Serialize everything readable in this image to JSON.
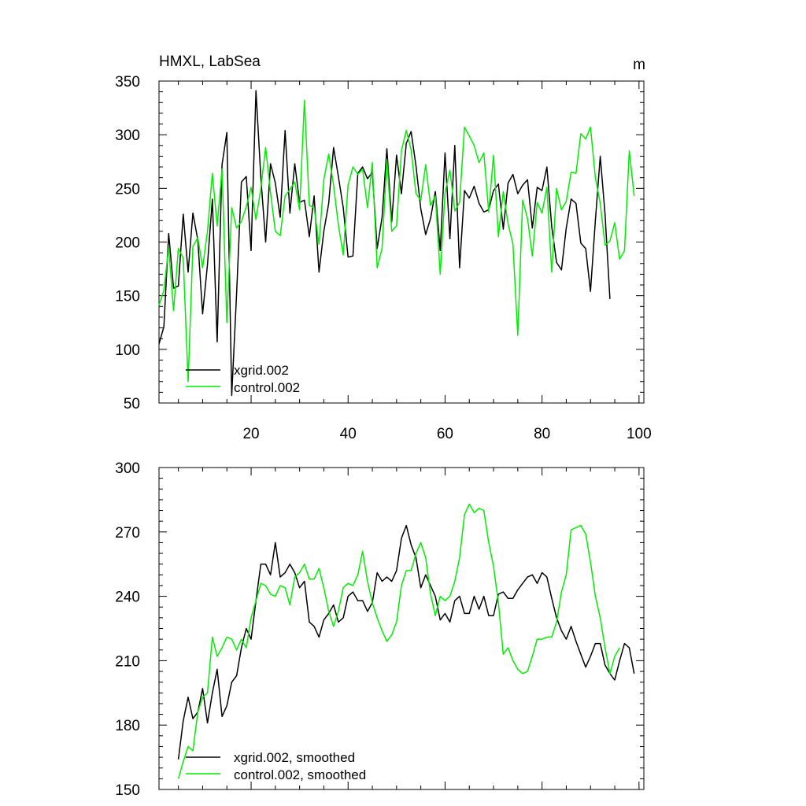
{
  "chart_data": [
    {
      "type": "line",
      "title_left": "HMXL, LabSea",
      "title_right": "m",
      "xlim": [
        1,
        101
      ],
      "ylim": [
        50,
        350
      ],
      "x_ticks": [
        20,
        40,
        60,
        80,
        100
      ],
      "x_tick_labels": [
        "20",
        "40",
        "60",
        "80",
        "100"
      ],
      "y_ticks": [
        50,
        100,
        150,
        200,
        250,
        300,
        350
      ],
      "y_tick_labels": [
        "50",
        "100",
        "150",
        "200",
        "250",
        "300",
        "350"
      ],
      "x_start": 1,
      "series": [
        {
          "name": "xgrid.002",
          "color": "#000000",
          "values": [
            105,
            121,
            208,
            157,
            159,
            226,
            172,
            227,
            202,
            133,
            179,
            240,
            107,
            272,
            302,
            57,
            152,
            256,
            261,
            192,
            341,
            260,
            200,
            273,
            255,
            223,
            304,
            227,
            273,
            237,
            239,
            205,
            243,
            172,
            210,
            236,
            288,
            261,
            232,
            186,
            187,
            264,
            270,
            259,
            265,
            194,
            223,
            287,
            219,
            281,
            245,
            292,
            303,
            271,
            231,
            207,
            222,
            247,
            192,
            283,
            203,
            290,
            176,
            248,
            241,
            252,
            236,
            228,
            230,
            248,
            254,
            212,
            255,
            263,
            245,
            253,
            258,
            213,
            251,
            248,
            270,
            214,
            181,
            174,
            213,
            240,
            236,
            199,
            194,
            154,
            220,
            280,
            226,
            147
          ]
        },
        {
          "name": "control.002",
          "color": "#00ee00",
          "values": [
            141,
            155,
            195,
            136,
            194,
            185,
            70,
            196,
            204,
            176,
            210,
            264,
            215,
            268,
            125,
            232,
            213,
            219,
            233,
            251,
            221,
            250,
            288,
            246,
            210,
            206,
            243,
            249,
            256,
            230,
            332,
            234,
            232,
            198,
            258,
            282,
            253,
            216,
            188,
            253,
            270,
            263,
            268,
            232,
            274,
            176,
            194,
            277,
            210,
            215,
            285,
            304,
            286,
            245,
            239,
            272,
            234,
            243,
            170,
            246,
            267,
            229,
            237,
            307,
            299,
            290,
            274,
            283,
            228,
            281,
            205,
            247,
            217,
            198,
            113,
            239,
            222,
            187,
            237,
            227,
            251,
            172,
            250,
            230,
            238,
            265,
            264,
            301,
            296,
            307,
            260,
            236,
            197,
            201,
            218,
            184,
            192,
            285,
            243
          ]
        }
      ],
      "legend": [
        "xgrid.002",
        "control.002"
      ]
    },
    {
      "type": "line",
      "xlim": [
        1,
        101
      ],
      "ylim": [
        150,
        300
      ],
      "x_ticks": [
        20,
        40,
        60,
        80,
        100
      ],
      "y_ticks": [
        150,
        180,
        210,
        240,
        270,
        300
      ],
      "y_tick_labels": [
        "150",
        "180",
        "210",
        "240",
        "270",
        "300"
      ],
      "x_start": 5,
      "series": [
        {
          "name": "xgrid.002, smoothed",
          "color": "#000000",
          "values": [
            164,
            182,
            193,
            183,
            186,
            197,
            181,
            195,
            206,
            184,
            189,
            200,
            203,
            216,
            225,
            220,
            238,
            255,
            255,
            250,
            265,
            249,
            251,
            255,
            251,
            244,
            247,
            228,
            226,
            221,
            229,
            232,
            236,
            228,
            230,
            240,
            242,
            238,
            238,
            233,
            237,
            251,
            247,
            249,
            247,
            252,
            267,
            273,
            264,
            258,
            244,
            250,
            245,
            240,
            229,
            232,
            228,
            238,
            240,
            232,
            232,
            240,
            234,
            240,
            231,
            231,
            241,
            242,
            239,
            239,
            243,
            246,
            249,
            250,
            246,
            251,
            249,
            239,
            230,
            224,
            220,
            226,
            219,
            213,
            207,
            212,
            218,
            218,
            208,
            204,
            201,
            210,
            218,
            216,
            204
          ]
        },
        {
          "name": "control.002, smoothed",
          "color": "#00ee00",
          "values": [
            155,
            163,
            170,
            168,
            186,
            193,
            195,
            221,
            212,
            216,
            221,
            220,
            215,
            220,
            216,
            230,
            238,
            246,
            245,
            241,
            240,
            245,
            244,
            236,
            249,
            251,
            255,
            248,
            248,
            253,
            244,
            233,
            226,
            233,
            244,
            246,
            245,
            250,
            261,
            247,
            237,
            230,
            224,
            219,
            222,
            228,
            245,
            252,
            252,
            260,
            265,
            258,
            241,
            231,
            240,
            238,
            240,
            247,
            258,
            278,
            283,
            279,
            281,
            280,
            265,
            254,
            237,
            213,
            216,
            210,
            206,
            204,
            205,
            212,
            220,
            220,
            221,
            221,
            228,
            242,
            250,
            271,
            272,
            273,
            269,
            256,
            240,
            230,
            216,
            204,
            212,
            216
          ]
        }
      ],
      "legend": [
        "xgrid.002, smoothed",
        "control.002, smoothed"
      ]
    }
  ]
}
